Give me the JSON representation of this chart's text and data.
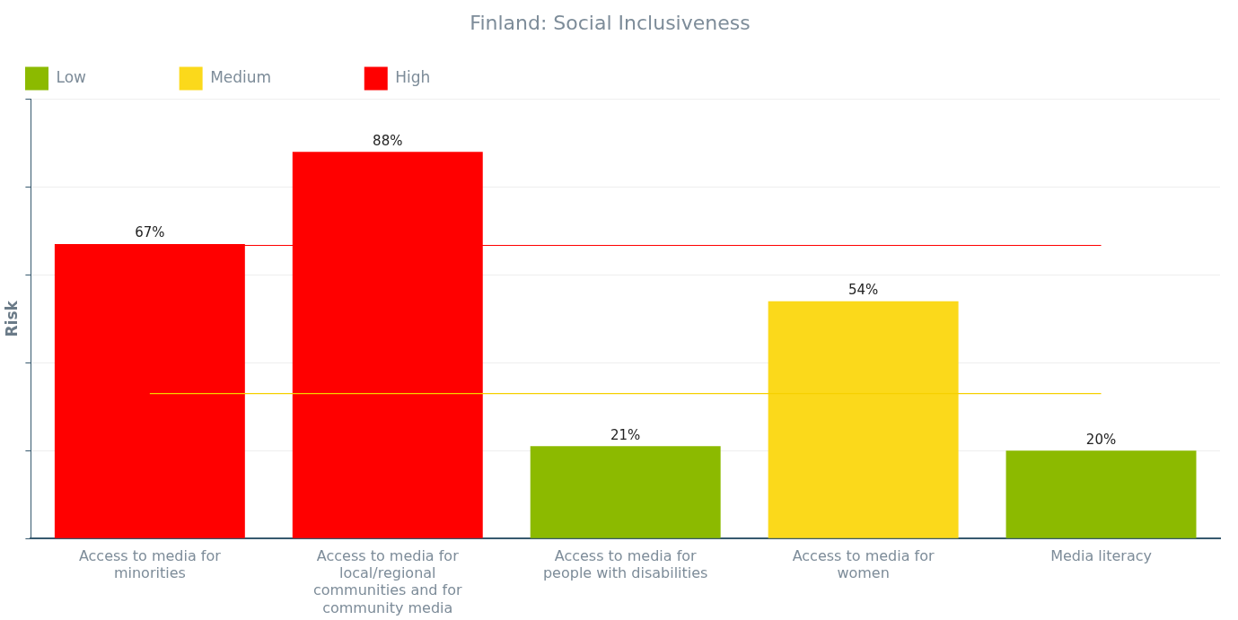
{
  "chart_data": {
    "type": "bar",
    "title": "Finland: Social Inclusiveness",
    "ylabel": "Risk",
    "categories": [
      "Access to media for minorities",
      "Access to media for local/regional communities and for community media",
      "Access to media for people with disabilities",
      "Access to media for women",
      "Media literacy"
    ],
    "stacked": true,
    "series": [
      {
        "name": "Low",
        "color": "#8cba00",
        "values": [
          null,
          null,
          21,
          null,
          20
        ],
        "value_labels": [
          null,
          null,
          "21%",
          null,
          "20%"
        ]
      },
      {
        "name": "Medium",
        "color": "#fbd91b",
        "values": [
          null,
          null,
          null,
          54,
          null
        ],
        "value_labels": [
          null,
          null,
          null,
          "54%",
          null
        ]
      },
      {
        "name": "High",
        "color": "#ff0000",
        "values": [
          67,
          88,
          null,
          null,
          null
        ],
        "value_labels": [
          "67%",
          "88%",
          null,
          null,
          null
        ]
      }
    ],
    "ylim": [
      0,
      100
    ],
    "yticks": [
      {
        "value": 0,
        "label": null
      },
      {
        "value": 20,
        "label": null
      },
      {
        "value": 40,
        "label": null
      },
      {
        "value": 60,
        "label": null
      },
      {
        "value": 80,
        "label": null
      },
      {
        "value": 100,
        "label": null
      }
    ],
    "tick_labels": "x",
    "grid": "y",
    "legend": "top left",
    "ref_lines": [
      {
        "axis": "y",
        "value": 66.7,
        "color": "#ff0000"
      },
      {
        "axis": "y",
        "value": 33,
        "color": "#f5d000"
      }
    ]
  }
}
